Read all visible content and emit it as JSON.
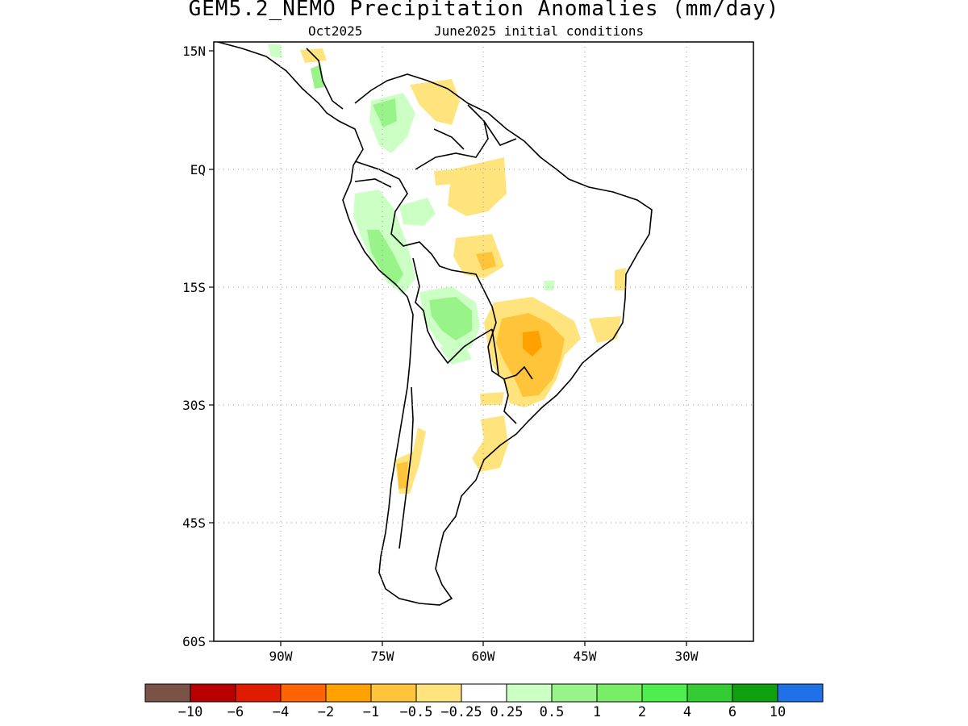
{
  "title": "GEM5.2_NEMO Precipitation Anomalies (mm/day)",
  "subtitle_left": "Oct2025",
  "subtitle_right": "June2025 initial conditions",
  "map": {
    "lat_labels": [
      "15N",
      "EQ",
      "15S",
      "30S",
      "45S",
      "60S"
    ],
    "lon_labels": [
      "90W",
      "75W",
      "60W",
      "45W",
      "30W"
    ],
    "lat_range": [
      -60,
      15
    ],
    "lon_range": [
      -100,
      -20
    ],
    "grid": "dotted"
  },
  "colorbar": {
    "colors": [
      "#7a5246",
      "#b80000",
      "#e01b00",
      "#ff6400",
      "#ffa200",
      "#ffc43a",
      "#ffe37c",
      "#ffffff",
      "#ccffc4",
      "#98f388",
      "#77ee66",
      "#4dee4d",
      "#33cc33",
      "#0fa00f",
      "#2070e8"
    ],
    "labels": [
      "-10",
      "-6",
      "-4",
      "-2",
      "-1",
      "-0.5",
      "-0.25",
      "0.25",
      "0.5",
      "1",
      "2",
      "4",
      "6",
      "10"
    ]
  },
  "anomaly_regions": [
    {
      "name": "brazil-central-south",
      "class": "-1"
    },
    {
      "name": "amazon-north",
      "class": "-0.5"
    },
    {
      "name": "andes-bolivia",
      "class": "0.5"
    },
    {
      "name": "colombia",
      "class": "0.5"
    }
  ]
}
